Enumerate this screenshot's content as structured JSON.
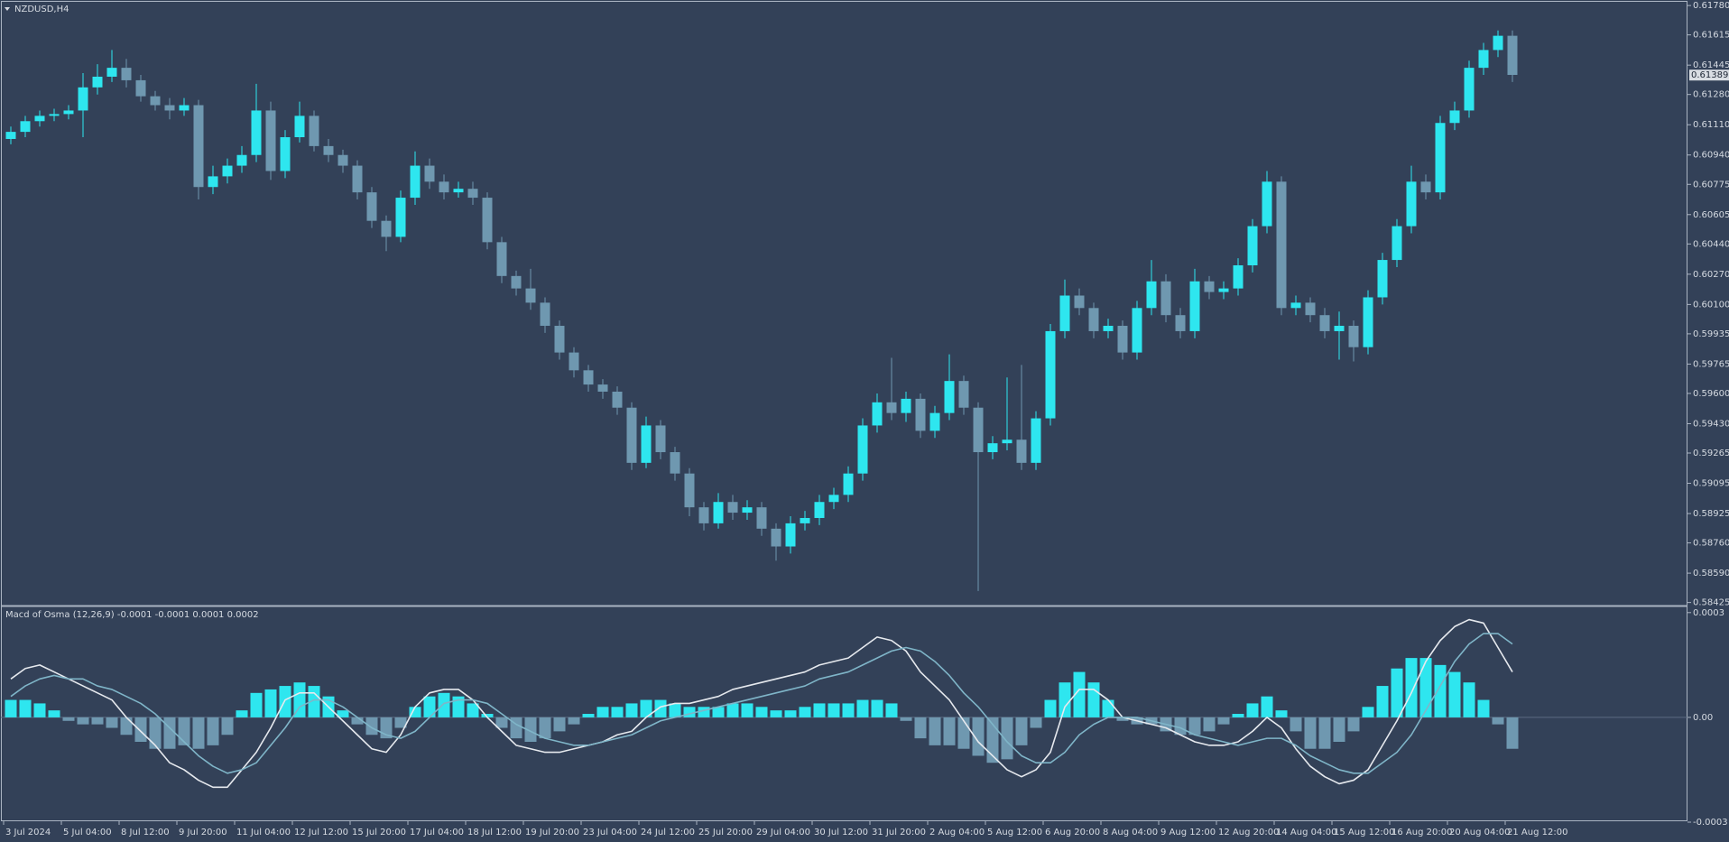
{
  "chart_data": [
    {
      "type": "candlestick",
      "title": "NZDUSD,H4",
      "up_color": "#2ee6ef",
      "down_color": "#6f98b0",
      "last_price": 0.61389,
      "ylim": [
        0.58413,
        0.61811
      ],
      "yticks": [
        {
          "value": 0.6178,
          "label": "0.61780"
        },
        0.61615,
        0.61445,
        {
          "value": 0.6128,
          "label": "0.61280"
        },
        {
          "value": 0.6111,
          "label": "0.61110"
        },
        {
          "value": 0.6094,
          "label": "0.60940"
        },
        0.60775,
        0.60605,
        {
          "value": 0.6044,
          "label": "0.60440"
        },
        {
          "value": 0.6027,
          "label": "0.60270"
        },
        {
          "value": 0.601,
          "label": "0.60100"
        },
        0.59935,
        0.59765,
        {
          "value": 0.596,
          "label": "0.59600"
        },
        {
          "value": 0.5943,
          "label": "0.59430"
        },
        0.59265,
        0.59095,
        0.58925,
        {
          "value": 0.5876,
          "label": "0.58760"
        },
        {
          "value": 0.5859,
          "label": "0.58590"
        },
        0.58425
      ],
      "categories": [
        "3 Jul 2024",
        null,
        null,
        null,
        "5 Jul 04:00",
        null,
        null,
        null,
        "8 Jul 12:00",
        null,
        null,
        null,
        "9 Jul 20:00",
        null,
        null,
        null,
        "11 Jul 04:00",
        null,
        null,
        null,
        "12 Jul 12:00",
        null,
        null,
        null,
        "15 Jul 20:00",
        null,
        null,
        null,
        "17 Jul 04:00",
        null,
        null,
        null,
        "18 Jul 12:00",
        null,
        null,
        null,
        "19 Jul 20:00",
        null,
        null,
        null,
        "23 Jul 04:00",
        null,
        null,
        null,
        "24 Jul 12:00",
        null,
        null,
        null,
        "25 Jul 20:00",
        null,
        null,
        null,
        "29 Jul 04:00",
        null,
        null,
        null,
        "30 Jul 12:00",
        null,
        null,
        null,
        "31 Jul 20:00",
        null,
        null,
        null,
        "2 Aug 04:00",
        null,
        null,
        null,
        "5 Aug 12:00",
        null,
        null,
        null,
        "6 Aug 20:00",
        null,
        null,
        null,
        "8 Aug 04:00",
        null,
        null,
        null,
        "9 Aug 12:00",
        null,
        null,
        null,
        "12 Aug 20:00",
        null,
        null,
        null,
        "14 Aug 04:00",
        null,
        null,
        null,
        "15 Aug 12:00",
        null,
        null,
        null,
        "16 Aug 20:00",
        null,
        null,
        null,
        "20 Aug 04:00",
        null,
        null,
        null,
        "21 Aug 12:00"
      ],
      "open": [
        0.6103,
        0.6107,
        0.6113,
        0.6116,
        0.6117,
        0.6119,
        0.6132,
        0.6138,
        0.6143,
        0.6136,
        0.6127,
        0.6122,
        0.6119,
        0.6122,
        0.6076,
        0.6082,
        0.6088,
        0.6094,
        0.6119,
        0.6085,
        0.6104,
        0.6116,
        0.6099,
        0.6094,
        0.6088,
        0.6073,
        0.6057,
        0.6048,
        0.607,
        0.6088,
        0.6079,
        0.6073,
        0.6075,
        0.607,
        0.6045,
        0.6026,
        0.6019,
        0.6011,
        0.5998,
        0.5983,
        0.5973,
        0.5965,
        0.5961,
        0.5952,
        0.5921,
        0.5942,
        0.5927,
        0.5915,
        0.5896,
        0.5887,
        0.5899,
        0.5893,
        0.5896,
        0.5884,
        0.5874,
        0.5887,
        0.589,
        0.5899,
        0.5903,
        0.5915,
        0.5942,
        0.5955,
        0.5949,
        0.5957,
        0.5939,
        0.5949,
        0.5967,
        0.5952,
        0.5927,
        0.5932,
        0.5934,
        0.5921,
        0.5946,
        0.5995,
        0.6015,
        0.6008,
        0.5995,
        0.5998,
        0.5983,
        0.6008,
        0.6023,
        0.6004,
        0.5995,
        0.6023,
        0.6017,
        0.6019,
        0.6032,
        0.6054,
        0.6079,
        0.6008,
        0.6011,
        0.6004,
        0.5995,
        0.5998,
        0.5986,
        0.6014,
        0.6035,
        0.6054,
        0.6079,
        0.6073,
        0.6112,
        0.6119,
        0.6143,
        0.6153,
        0.6161
      ],
      "high": [
        0.611,
        0.6116,
        0.6119,
        0.612,
        0.6122,
        0.614,
        0.6145,
        0.6153,
        0.6148,
        0.6139,
        0.613,
        0.6126,
        0.6126,
        0.6125,
        0.6088,
        0.6092,
        0.6099,
        0.6134,
        0.6124,
        0.6108,
        0.6124,
        0.6119,
        0.6103,
        0.6097,
        0.6091,
        0.6076,
        0.606,
        0.6074,
        0.6096,
        0.6092,
        0.6083,
        0.6079,
        0.6079,
        0.6073,
        0.6048,
        0.6029,
        0.603,
        0.6014,
        0.6001,
        0.5986,
        0.5976,
        0.5968,
        0.5964,
        0.5955,
        0.5947,
        0.5945,
        0.593,
        0.5918,
        0.5899,
        0.5904,
        0.5903,
        0.59,
        0.5899,
        0.5887,
        0.5891,
        0.5894,
        0.5903,
        0.5907,
        0.5919,
        0.5946,
        0.596,
        0.598,
        0.5961,
        0.596,
        0.5953,
        0.5982,
        0.597,
        0.5955,
        0.5936,
        0.5969,
        0.5976,
        0.595,
        0.5999,
        0.6024,
        0.6019,
        0.6011,
        0.6002,
        0.6001,
        0.6012,
        0.6035,
        0.6027,
        0.6008,
        0.603,
        0.6026,
        0.6023,
        0.6036,
        0.6058,
        0.6085,
        0.6082,
        0.6015,
        0.6014,
        0.6008,
        0.6006,
        0.6001,
        0.6018,
        0.6039,
        0.6058,
        0.6088,
        0.6083,
        0.6116,
        0.6124,
        0.6147,
        0.6157,
        0.6164,
        0.6164
      ],
      "low": [
        0.61,
        0.6104,
        0.611,
        0.6113,
        0.6114,
        0.6104,
        0.6128,
        0.6135,
        0.6132,
        0.6124,
        0.6119,
        0.6114,
        0.6116,
        0.6069,
        0.6072,
        0.6078,
        0.6084,
        0.609,
        0.608,
        0.6081,
        0.6101,
        0.6096,
        0.609,
        0.6084,
        0.6069,
        0.6053,
        0.604,
        0.6045,
        0.6066,
        0.6075,
        0.6069,
        0.607,
        0.6066,
        0.6041,
        0.6022,
        0.6015,
        0.6007,
        0.5994,
        0.5979,
        0.5969,
        0.5961,
        0.5957,
        0.5948,
        0.5917,
        0.5918,
        0.5923,
        0.5911,
        0.5891,
        0.5883,
        0.5884,
        0.5889,
        0.5889,
        0.588,
        0.5866,
        0.587,
        0.5883,
        0.5886,
        0.5895,
        0.5899,
        0.5911,
        0.5938,
        0.5945,
        0.5944,
        0.5935,
        0.5935,
        0.5945,
        0.5948,
        0.5849,
        0.5923,
        0.5928,
        0.5917,
        0.5917,
        0.5942,
        0.5991,
        0.6004,
        0.5991,
        0.5991,
        0.5979,
        0.5979,
        0.6004,
        0.6,
        0.5991,
        0.5991,
        0.6013,
        0.6013,
        0.6015,
        0.6028,
        0.605,
        0.6004,
        0.6004,
        0.6,
        0.5991,
        0.5979,
        0.5978,
        0.5982,
        0.601,
        0.6031,
        0.605,
        0.6069,
        0.6069,
        0.6108,
        0.6115,
        0.6139,
        0.6149,
        0.6135
      ],
      "close": [
        0.6107,
        0.6113,
        0.6116,
        0.6117,
        0.6119,
        0.6132,
        0.6138,
        0.6143,
        0.6136,
        0.6127,
        0.6122,
        0.6119,
        0.6122,
        0.6076,
        0.6082,
        0.6088,
        0.6094,
        0.6119,
        0.6085,
        0.6104,
        0.6116,
        0.6099,
        0.6094,
        0.6088,
        0.6073,
        0.6057,
        0.6048,
        0.607,
        0.6088,
        0.6079,
        0.6073,
        0.6075,
        0.607,
        0.6045,
        0.6026,
        0.6019,
        0.6011,
        0.5998,
        0.5983,
        0.5973,
        0.5965,
        0.5961,
        0.5952,
        0.5921,
        0.5942,
        0.5927,
        0.5915,
        0.5896,
        0.5887,
        0.5899,
        0.5893,
        0.5896,
        0.5884,
        0.5874,
        0.5887,
        0.589,
        0.5899,
        0.5903,
        0.5915,
        0.5942,
        0.5955,
        0.5949,
        0.5957,
        0.5939,
        0.5949,
        0.5967,
        0.5952,
        0.5927,
        0.5932,
        0.5934,
        0.5921,
        0.5946,
        0.5995,
        0.6015,
        0.6008,
        0.5995,
        0.5998,
        0.5983,
        0.6008,
        0.6023,
        0.6004,
        0.5995,
        0.6023,
        0.6017,
        0.6019,
        0.6032,
        0.6054,
        0.6079,
        0.6008,
        0.6011,
        0.6004,
        0.5995,
        0.5998,
        0.5986,
        0.6014,
        0.6035,
        0.6054,
        0.6079,
        0.6073,
        0.6112,
        0.6119,
        0.6143,
        0.6153,
        0.6161,
        0.6139
      ]
    },
    {
      "type": "macd",
      "title": "Macd of Osma (12,26,9) -0.0001 -0.0001 0.0001 0.0002",
      "ylim": [
        -0.0003,
        0.000315
      ],
      "yticks": [
        0.0003,
        {
          "value": 0,
          "label": "0.00"
        },
        -0.0003
      ],
      "histogram": {
        "up_color": "#2ee6ef",
        "down_color": "#6f98b0",
        "values": [
          5e-05,
          5e-05,
          4e-05,
          2e-05,
          -1e-05,
          -2e-05,
          -2e-05,
          -3e-05,
          -5e-05,
          -7e-05,
          -9e-05,
          -9e-05,
          -8e-05,
          -9e-05,
          -8e-05,
          -5e-05,
          2e-05,
          7e-05,
          8e-05,
          9e-05,
          0.0001,
          9e-05,
          6e-05,
          2e-05,
          -2e-05,
          -5e-05,
          -6e-05,
          -3e-05,
          3e-05,
          6e-05,
          7e-05,
          6e-05,
          4e-05,
          1e-05,
          -3e-05,
          -6e-05,
          -7e-05,
          -6e-05,
          -4e-05,
          -2e-05,
          1e-05,
          3e-05,
          3e-05,
          4e-05,
          5e-05,
          5e-05,
          4e-05,
          3e-05,
          3e-05,
          3e-05,
          4e-05,
          4e-05,
          3e-05,
          2e-05,
          2e-05,
          3e-05,
          4e-05,
          4e-05,
          4e-05,
          5e-05,
          5e-05,
          4e-05,
          -1e-05,
          -6e-05,
          -8e-05,
          -8e-05,
          -9e-05,
          -0.00011,
          -0.00013,
          -0.00012,
          -8e-05,
          -3e-05,
          5e-05,
          0.0001,
          0.00013,
          0.0001,
          5e-05,
          -1e-05,
          -2e-05,
          -2e-05,
          -4e-05,
          -5e-05,
          -5e-05,
          -4e-05,
          -2e-05,
          1e-05,
          4e-05,
          6e-05,
          2e-05,
          -4e-05,
          -9e-05,
          -9e-05,
          -7e-05,
          -4e-05,
          3e-05,
          9e-05,
          0.00014,
          0.00017,
          0.00017,
          0.00015,
          0.00013,
          0.0001,
          5e-05,
          -2e-05,
          -9e-05
        ]
      },
      "lines": [
        {
          "color": "#e6e9ee",
          "values": [
            0.00011,
            0.00014,
            0.00015,
            0.00013,
            0.00011,
            9e-05,
            7e-05,
            5e-05,
            0,
            -4e-05,
            -8e-05,
            -0.00013,
            -0.00015,
            -0.00018,
            -0.0002,
            -0.0002,
            -0.00015,
            -0.0001,
            -3e-05,
            5e-05,
            7e-05,
            7e-05,
            3e-05,
            -1e-05,
            -5e-05,
            -9e-05,
            -0.0001,
            -5e-05,
            3e-05,
            7e-05,
            8e-05,
            8e-05,
            5e-05,
            0,
            -4e-05,
            -8e-05,
            -9e-05,
            -0.0001,
            -0.0001,
            -9e-05,
            -8e-05,
            -7e-05,
            -5e-05,
            -4e-05,
            0,
            3e-05,
            4e-05,
            4e-05,
            5e-05,
            6e-05,
            8e-05,
            9e-05,
            0.0001,
            0.00011,
            0.00012,
            0.00013,
            0.00015,
            0.00016,
            0.00017,
            0.0002,
            0.00023,
            0.00022,
            0.00019,
            0.00013,
            9e-05,
            5e-05,
            -1e-05,
            -7e-05,
            -0.00011,
            -0.00015,
            -0.00017,
            -0.00015,
            -0.0001,
            3e-05,
            8e-05,
            8e-05,
            5e-05,
            0,
            -1e-05,
            -2e-05,
            -3e-05,
            -5e-05,
            -7e-05,
            -8e-05,
            -8e-05,
            -7e-05,
            -4e-05,
            0,
            -3e-05,
            -9e-05,
            -0.00014,
            -0.00017,
            -0.00019,
            -0.00018,
            -0.00015,
            -8e-05,
            -1e-05,
            7e-05,
            0.00016,
            0.00022,
            0.00026,
            0.00028,
            0.00027,
            0.0002,
            0.00013
          ]
        },
        {
          "color": "#7fb5c8",
          "values": [
            6e-05,
            9e-05,
            0.00011,
            0.00012,
            0.00011,
            0.00011,
            9e-05,
            8e-05,
            6e-05,
            4e-05,
            1e-05,
            -3e-05,
            -7e-05,
            -0.00011,
            -0.00014,
            -0.00016,
            -0.00015,
            -0.00013,
            -8e-05,
            -3e-05,
            3e-05,
            5e-05,
            5e-05,
            3e-05,
            0,
            -3e-05,
            -5e-05,
            -6e-05,
            -4e-05,
            0,
            4e-05,
            5e-05,
            5e-05,
            4e-05,
            1e-05,
            -2e-05,
            -4e-05,
            -6e-05,
            -7e-05,
            -8e-05,
            -8e-05,
            -7e-05,
            -6e-05,
            -5e-05,
            -3e-05,
            -1e-05,
            0,
            1e-05,
            2e-05,
            3e-05,
            4e-05,
            5e-05,
            6e-05,
            7e-05,
            8e-05,
            9e-05,
            0.00011,
            0.00012,
            0.00013,
            0.00015,
            0.00017,
            0.00019,
            0.0002,
            0.00019,
            0.00016,
            0.00012,
            7e-05,
            3e-05,
            -2e-05,
            -7e-05,
            -0.00011,
            -0.00013,
            -0.00013,
            -0.0001,
            -5e-05,
            -2e-05,
            0,
            0,
            0,
            -1e-05,
            -2e-05,
            -3e-05,
            -5e-05,
            -6e-05,
            -7e-05,
            -8e-05,
            -7e-05,
            -6e-05,
            -6e-05,
            -8e-05,
            -0.00011,
            -0.00013,
            -0.00015,
            -0.00016,
            -0.00016,
            -0.00013,
            -0.0001,
            -5e-05,
            2e-05,
            9e-05,
            0.00016,
            0.00021,
            0.00024,
            0.00024,
            0.00021
          ]
        }
      ]
    }
  ]
}
